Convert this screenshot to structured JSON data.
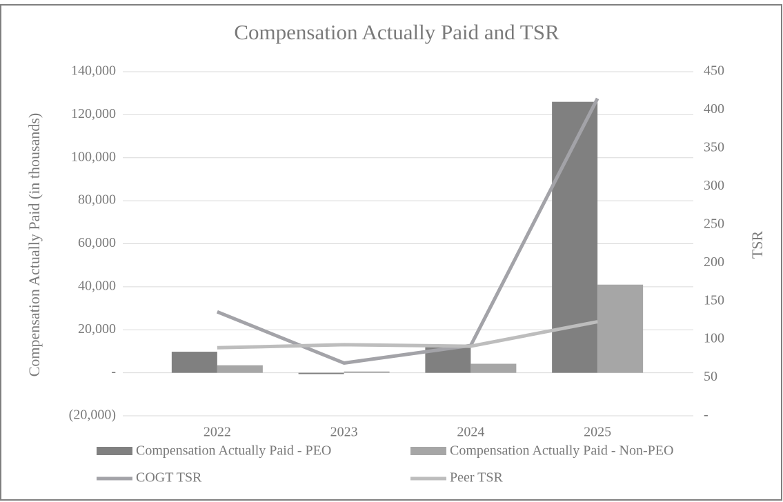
{
  "chart_data": {
    "type": "bar_line",
    "title": "Compensation Actually Paid and TSR",
    "ylabel": "Compensation Actually Paid (in thousands)",
    "y2label": "TSR",
    "categories": [
      "2022",
      "2023",
      "2024",
      "2025"
    ],
    "series": [
      {
        "name": "Compensation Actually Paid - PEO",
        "type": "bar",
        "color": "#808080",
        "values": [
          9800,
          -600,
          12200,
          126000
        ]
      },
      {
        "name": "Compensation Actually Paid - Non-PEO",
        "type": "bar",
        "color": "#a6a6a6",
        "values": [
          3500,
          600,
          4200,
          41000
        ]
      },
      {
        "name": "COGT TSR",
        "type": "line",
        "axis": "y2",
        "color": "#a3a3a8",
        "values": [
          136,
          69,
          92,
          415
        ]
      },
      {
        "name": "Peer TSR",
        "type": "line",
        "axis": "y2",
        "color": "#bdbdbd",
        "values": [
          89,
          93,
          91,
          123
        ]
      }
    ],
    "ylim": [
      -20000,
      140000
    ],
    "yticks": [
      {
        "value": -20000,
        "label": "(20,000)"
      },
      {
        "value": 0,
        "label": "-"
      },
      {
        "value": 20000,
        "label": "20,000"
      },
      {
        "value": 40000,
        "label": "40,000"
      },
      {
        "value": 60000,
        "label": "60,000"
      },
      {
        "value": 80000,
        "label": "80,000"
      },
      {
        "value": 100000,
        "label": "100,000"
      },
      {
        "value": 120000,
        "label": "120,000"
      },
      {
        "value": 140000,
        "label": "140,000"
      }
    ],
    "y2lim": [
      0,
      450
    ],
    "y2ticks": [
      {
        "value": 0,
        "label": "-"
      },
      50,
      100,
      150,
      200,
      250,
      300,
      350,
      400,
      450
    ],
    "grid": true
  }
}
